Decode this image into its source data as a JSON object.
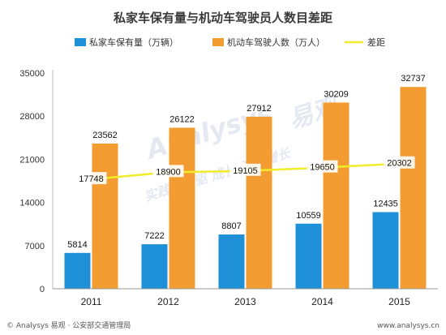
{
  "chart_data": {
    "type": "bar",
    "title": "私家车保有量与机动车驾驶员人数目差距",
    "categories": [
      "2011",
      "2012",
      "2013",
      "2014",
      "2015"
    ],
    "series": [
      {
        "name": "私家车保有量（万辆）",
        "type": "bar",
        "color": "#1e90d8",
        "values": [
          5814,
          7222,
          8807,
          10559,
          12435
        ]
      },
      {
        "name": "机动车驾驶人数（万人）",
        "type": "bar",
        "color": "#f39c31",
        "values": [
          23562,
          26122,
          27912,
          30209,
          32737
        ]
      },
      {
        "name": "差距",
        "type": "line",
        "color": "#f0ec2a",
        "values": [
          17748,
          18900,
          19105,
          19650,
          20302
        ]
      }
    ],
    "ylim": [
      0,
      35000
    ],
    "yticks": [
      0,
      7000,
      14000,
      21000,
      28000,
      35000
    ],
    "xlabel": "",
    "ylabel": "",
    "grid": false,
    "legend_position": "top"
  },
  "watermark": {
    "brand": "Analysys",
    "brand_cn": "易观",
    "slogan": "实践者新驱 成长 资产增长"
  },
  "footer": {
    "source": "© Analysys 易观 · 公安部交通管理局",
    "url": "www.analysys.cn"
  }
}
